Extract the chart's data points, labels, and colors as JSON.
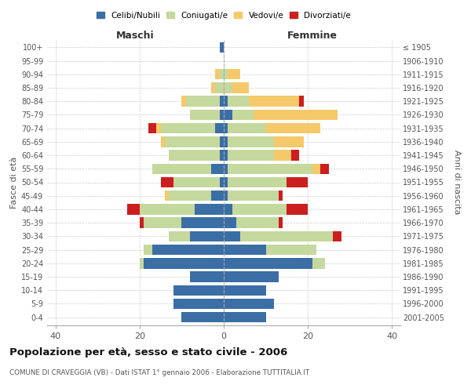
{
  "age_groups_bottom_to_top": [
    "0-4",
    "5-9",
    "10-14",
    "15-19",
    "20-24",
    "25-29",
    "30-34",
    "35-39",
    "40-44",
    "45-49",
    "50-54",
    "55-59",
    "60-64",
    "65-69",
    "70-74",
    "75-79",
    "80-84",
    "85-89",
    "90-94",
    "95-99",
    "100+"
  ],
  "birth_years_bottom_to_top": [
    "2001-2005",
    "1996-2000",
    "1991-1995",
    "1986-1990",
    "1981-1985",
    "1976-1980",
    "1971-1975",
    "1966-1970",
    "1961-1965",
    "1956-1960",
    "1951-1955",
    "1946-1950",
    "1941-1945",
    "1936-1940",
    "1931-1935",
    "1926-1930",
    "1921-1925",
    "1916-1920",
    "1911-1915",
    "1906-1910",
    "≤ 1905"
  ],
  "maschi": {
    "celibi": [
      10,
      12,
      12,
      8,
      19,
      17,
      8,
      10,
      7,
      3,
      1,
      3,
      1,
      1,
      2,
      1,
      1,
      0,
      0,
      0,
      1
    ],
    "coniugati": [
      0,
      0,
      0,
      0,
      1,
      2,
      5,
      9,
      13,
      10,
      11,
      14,
      12,
      13,
      13,
      7,
      8,
      2,
      1,
      0,
      0
    ],
    "vedovi": [
      0,
      0,
      0,
      0,
      0,
      0,
      0,
      0,
      0,
      1,
      0,
      0,
      0,
      1,
      1,
      0,
      1,
      1,
      1,
      0,
      0
    ],
    "divorziati": [
      0,
      0,
      0,
      0,
      0,
      0,
      0,
      1,
      3,
      0,
      3,
      0,
      0,
      0,
      2,
      0,
      0,
      0,
      0,
      0,
      0
    ]
  },
  "femmine": {
    "nubili": [
      10,
      12,
      10,
      13,
      21,
      10,
      4,
      3,
      2,
      1,
      1,
      1,
      1,
      1,
      1,
      2,
      1,
      0,
      0,
      0,
      0
    ],
    "coniugate": [
      0,
      0,
      0,
      0,
      3,
      12,
      22,
      10,
      13,
      12,
      14,
      20,
      11,
      11,
      9,
      5,
      5,
      2,
      1,
      0,
      0
    ],
    "vedove": [
      0,
      0,
      0,
      0,
      0,
      0,
      0,
      0,
      0,
      0,
      0,
      2,
      4,
      7,
      13,
      20,
      12,
      4,
      3,
      0,
      0
    ],
    "divorziate": [
      0,
      0,
      0,
      0,
      0,
      0,
      2,
      1,
      5,
      1,
      5,
      2,
      2,
      0,
      0,
      0,
      1,
      0,
      0,
      0,
      0
    ]
  },
  "colors": {
    "celibi": "#3a6ea5",
    "coniugati": "#c5d89d",
    "vedovi": "#f5c96a",
    "divorziati": "#cc1e1e"
  },
  "xlim": 42,
  "title": "Popolazione per età, sesso e stato civile - 2006",
  "subtitle": "COMUNE DI CRAVEGGIA (VB) - Dati ISTAT 1° gennaio 2006 - Elaborazione TUTTITALIA.IT",
  "ylabel_left": "Fasce di età",
  "ylabel_right": "Anni di nascita",
  "xlabel_maschi": "Maschi",
  "xlabel_femmine": "Femmine",
  "legend_labels": [
    "Celibi/Nubili",
    "Coniugati/e",
    "Vedovi/e",
    "Divorziati/e"
  ]
}
